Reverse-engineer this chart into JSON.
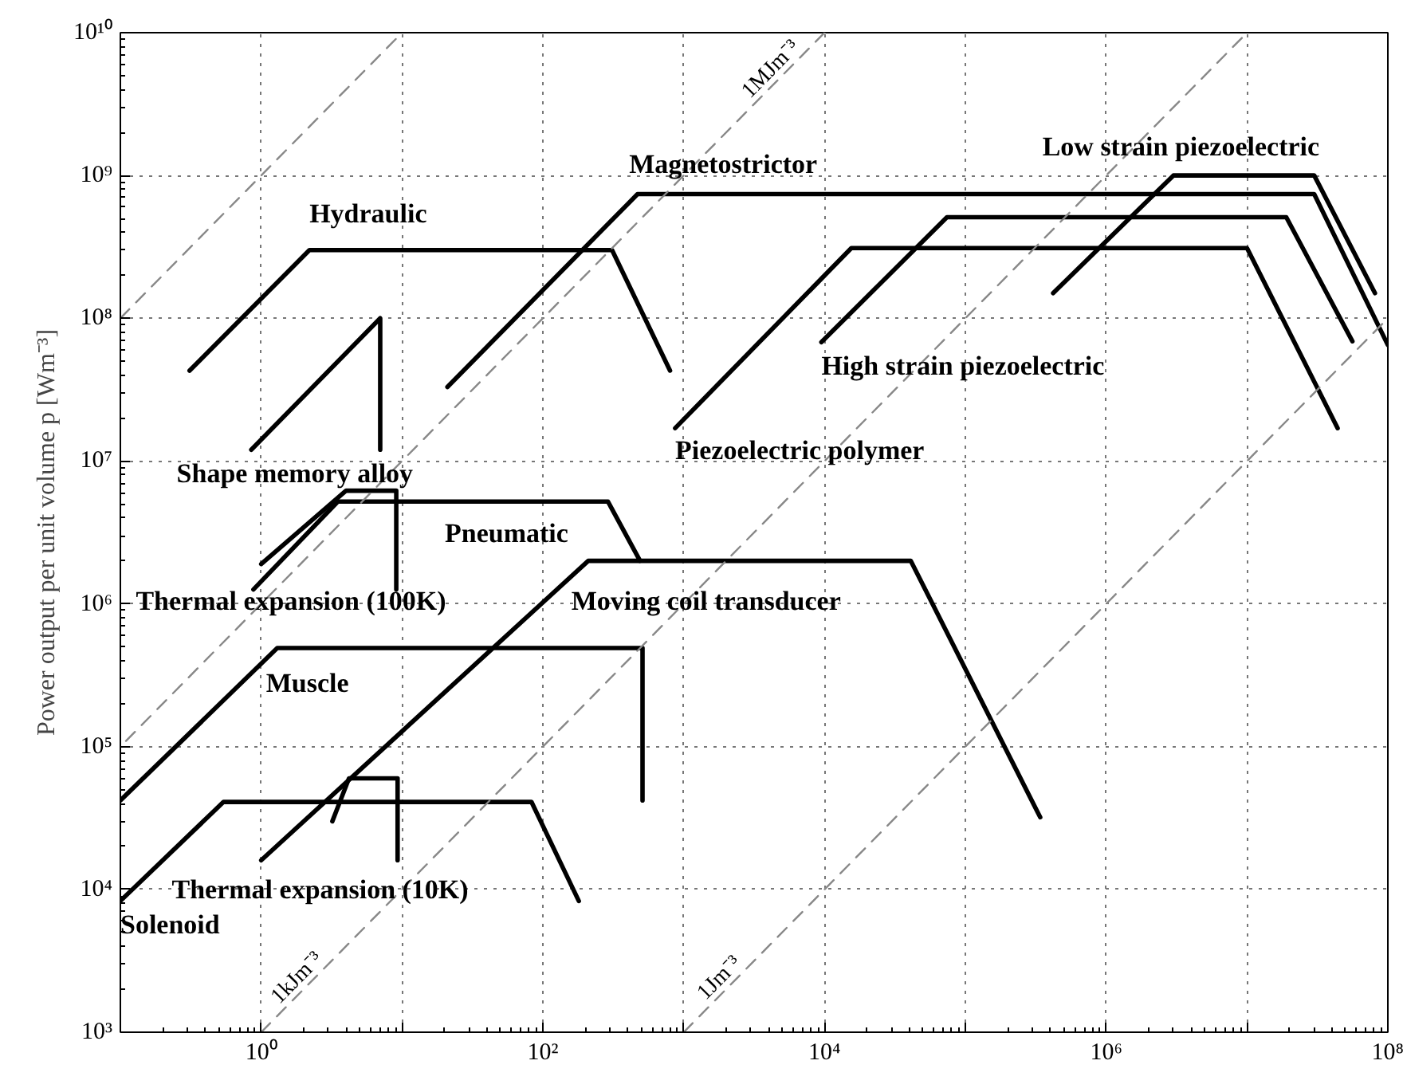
{
  "chart_data": {
    "type": "line",
    "ylabel": "Power output per unit volume p [Wm⁻³]",
    "log": "xy",
    "xlim": [
      0.1,
      100000000
    ],
    "ylim": [
      1000,
      10000000000
    ],
    "xticks": [
      {
        "value": 0.1,
        "label": null
      },
      {
        "value": 1,
        "label": "10⁰"
      },
      {
        "value": 10,
        "label": null
      },
      {
        "value": 100,
        "label": "10²"
      },
      {
        "value": 1000,
        "label": null
      },
      {
        "value": 10000,
        "label": "10⁴"
      },
      {
        "value": 100000,
        "label": null
      },
      {
        "value": 1000000,
        "label": "10⁶"
      },
      {
        "value": 10000000,
        "label": null
      },
      {
        "value": 100000000,
        "label": "10⁸"
      }
    ],
    "yticks": [
      {
        "value": 1000,
        "label": "10³"
      },
      {
        "value": 10000,
        "label": "10⁴"
      },
      {
        "value": 100000,
        "label": "10⁵"
      },
      {
        "value": 1000000,
        "label": "10⁶"
      },
      {
        "value": 10000000,
        "label": "10⁷"
      },
      {
        "value": 100000000,
        "label": "10⁸"
      },
      {
        "value": 1000000000,
        "label": "10⁹"
      },
      {
        "value": 10000000000,
        "label": "10¹⁰"
      }
    ],
    "grid": true,
    "line_style": "solid",
    "series": [
      {
        "name": "Hydraulic",
        "color": "#000000",
        "x": [
          0.31,
          2.2,
          310,
          800
        ],
        "values": [
          43000000,
          300000000,
          300000000,
          43000000
        ]
      },
      {
        "name": "Shape memory alloy",
        "color": "#000000",
        "x": [
          0.85,
          7,
          7
        ],
        "values": [
          12000000,
          100000000,
          12000000
        ]
      },
      {
        "name": "Magnetostrictor",
        "color": "#000000",
        "x": [
          21,
          470,
          30000000,
          100000000
        ],
        "values": [
          33000000,
          740000000,
          740000000,
          65000000
        ]
      },
      {
        "name": "Low strain piezoelectric",
        "color": "#000000",
        "x": [
          420000,
          3000000,
          30000000,
          81000000
        ],
        "values": [
          150000000,
          1000000000,
          1000000000,
          150000000
        ]
      },
      {
        "name": "High strain piezoelectric",
        "color": "#000000",
        "x": [
          9500,
          74000,
          19000000,
          56000000
        ],
        "values": [
          68000000,
          510000000,
          510000000,
          69000000
        ]
      },
      {
        "name": "Piezoelectric polymer",
        "color": "#000000",
        "x": [
          870,
          15500,
          10000000,
          44000000
        ],
        "values": [
          17000000,
          310000000,
          310000000,
          17000000
        ]
      },
      {
        "name": "Pneumatic",
        "color": "#000000",
        "x": [
          0.88,
          3.5,
          290,
          490
        ],
        "values": [
          1260000,
          5200000,
          5200000,
          2000000
        ]
      },
      {
        "name": "Thermal expansion (100K)",
        "color": "#000000",
        "x": [
          1.0,
          4.0,
          9.1,
          9.1
        ],
        "values": [
          1900000,
          6200000,
          6200000,
          1260000
        ]
      },
      {
        "name": "Moving coil transducer",
        "color": "#000000",
        "x": [
          1.0,
          210,
          41000,
          340000
        ],
        "values": [
          16000,
          2000000,
          2000000,
          32000
        ]
      },
      {
        "name": "Muscle",
        "color": "#000000",
        "x": [
          0.1,
          1.3,
          510,
          510
        ],
        "values": [
          42000,
          490000,
          490000,
          42000
        ]
      },
      {
        "name": "Solenoid",
        "color": "#000000",
        "x": [
          0.1,
          0.54,
          83,
          180
        ],
        "values": [
          8300,
          41000,
          41000,
          8300
        ]
      },
      {
        "name": "Thermal expansion (10K)",
        "color": "#000000",
        "x": [
          3.2,
          4.2,
          9.3,
          9.3
        ],
        "values": [
          30000,
          60000,
          60000,
          16000
        ]
      },
      {
        "color": "#888888",
        "line_style": "dashed",
        "x": [
          0.1,
          10
        ],
        "values": [
          100000000,
          10000000000
        ]
      },
      {
        "name": "1MJm⁻³",
        "color": "#888888",
        "line_style": "dashed",
        "x": [
          10000,
          0.1
        ],
        "values": [
          10000000000,
          100000
        ]
      },
      {
        "name": "1kJm⁻³",
        "color": "#888888",
        "line_style": "dashed",
        "x": [
          1,
          10000000
        ],
        "values": [
          1000,
          10000000000
        ]
      },
      {
        "name": "1Jm⁻³",
        "color": "#888888",
        "line_style": "dashed",
        "x": [
          1000,
          100000000
        ],
        "values": [
          1000,
          100000000
        ]
      }
    ]
  }
}
